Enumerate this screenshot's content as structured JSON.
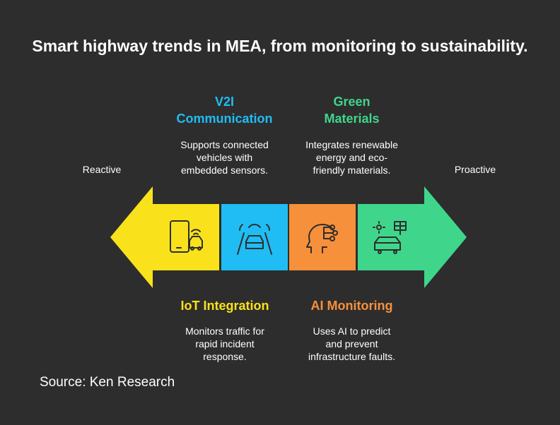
{
  "title": "Smart highway trends in MEA, from monitoring to sustainability.",
  "ends": {
    "left": "Reactive",
    "right": "Proactive"
  },
  "colors": {
    "background": "#2d2d2d",
    "yellow": "#f9e21c",
    "blue": "#1fbdf3",
    "orange": "#f7903a",
    "green": "#3fd68c"
  },
  "stages": [
    {
      "heading_lines": [
        "IoT Integration"
      ],
      "desc_lines": [
        "Monitors traffic for",
        "rapid incident",
        "response."
      ],
      "icon": "phone-car-signal-icon",
      "color": "#f9e21c",
      "heading_color": "#f9e21c",
      "position": "below"
    },
    {
      "heading_lines": [
        "V2I",
        "Communication"
      ],
      "desc_lines": [
        "Supports connected",
        "vehicles with",
        "embedded sensors."
      ],
      "icon": "connected-car-road-icon",
      "color": "#1fbdf3",
      "heading_color": "#1fbdf3",
      "position": "above"
    },
    {
      "heading_lines": [
        "AI Monitoring"
      ],
      "desc_lines": [
        "Uses AI to predict",
        "and prevent",
        "infrastructure faults."
      ],
      "icon": "ai-head-circuit-icon",
      "color": "#f7903a",
      "heading_color": "#f7903a",
      "position": "below"
    },
    {
      "heading_lines": [
        "Green",
        "Materials"
      ],
      "desc_lines": [
        "Integrates renewable",
        "energy and eco-",
        "friendly materials."
      ],
      "icon": "solar-car-icon",
      "color": "#3fd68c",
      "heading_color": "#3fd68c",
      "position": "above"
    }
  ],
  "source": "Source: Ken Research"
}
